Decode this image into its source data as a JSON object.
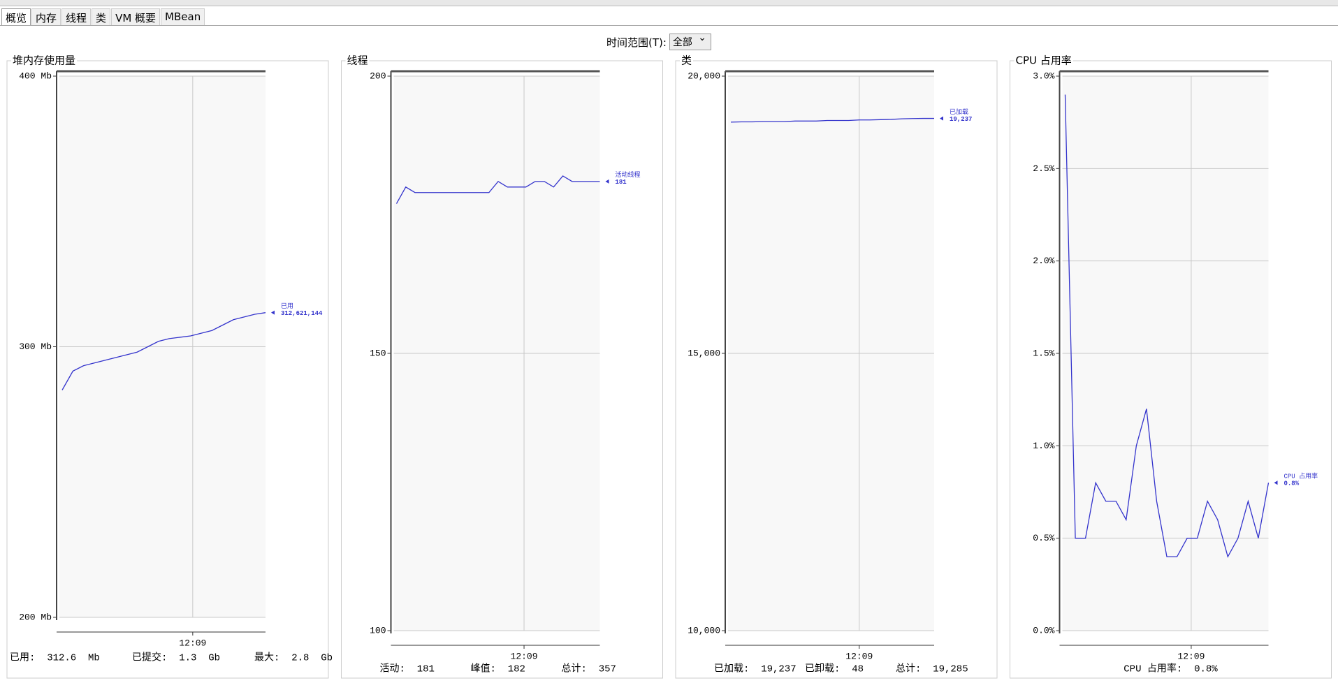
{
  "tabs": [
    "概览",
    "内存",
    "线程",
    "类",
    "VM 概要",
    "MBean"
  ],
  "time_range": {
    "label": "时间范围(T):",
    "value": "全部"
  },
  "chart_data": [
    {
      "type": "line",
      "title": "堆内存使用量",
      "values": [
        284,
        291,
        293,
        294,
        295,
        296,
        297,
        298,
        300,
        302,
        303,
        303.5,
        304,
        305,
        306,
        308,
        310,
        311,
        312,
        312.6
      ],
      "xlim": [
        0,
        19
      ],
      "xticks": [
        {
          "value": 12.2,
          "label": "12:09"
        }
      ],
      "ylim": [
        200,
        400
      ],
      "yticks": [
        {
          "value": 200,
          "label": "200 Mb"
        },
        {
          "value": 300,
          "label": "300 Mb"
        },
        {
          "value": 400,
          "label": "400 Mb"
        }
      ],
      "color": "#3333cc",
      "grid": true,
      "marker": {
        "name": "已用",
        "label": "312,621,144"
      },
      "footer": [
        "已用:  312.6  Mb",
        "已提交:  1.3  Gb",
        "最大:  2.8  Gb"
      ]
    },
    {
      "type": "line",
      "title": "线程",
      "values": [
        177,
        180,
        179,
        179,
        179,
        179,
        179,
        179,
        179,
        179,
        179,
        181,
        180,
        180,
        180,
        181,
        181,
        180,
        182,
        181,
        181,
        181,
        181
      ],
      "xlim": [
        0,
        22
      ],
      "xticks": [
        {
          "value": 13.8,
          "label": "12:09"
        }
      ],
      "ylim": [
        100,
        200
      ],
      "yticks": [
        100,
        150,
        200
      ],
      "color": "#3333cc",
      "grid": true,
      "marker": {
        "name": "活动线程",
        "label": "181"
      },
      "footer": [
        "活动:  181",
        "峰值:  182",
        "总计:  357"
      ]
    },
    {
      "type": "line",
      "title": "类",
      "values": [
        19170,
        19175,
        19175,
        19180,
        19180,
        19180,
        19190,
        19190,
        19190,
        19200,
        19200,
        19200,
        19210,
        19210,
        19215,
        19220,
        19230,
        19235,
        19237,
        19237
      ],
      "xlim": [
        0,
        19
      ],
      "xticks": [
        {
          "value": 12,
          "label": "12:09"
        }
      ],
      "ylim": [
        10000,
        20000
      ],
      "yticks": [
        {
          "value": 10000,
          "label": "10,000"
        },
        {
          "value": 15000,
          "label": "15,000"
        },
        {
          "value": 20000,
          "label": "20,000"
        }
      ],
      "color": "#3333cc",
      "grid": true,
      "marker": {
        "name": "已加载",
        "label": "19,237"
      },
      "footer": [
        "已加载:  19,237",
        "已卸载:  48",
        "总计:  19,285"
      ]
    },
    {
      "type": "line",
      "title": "CPU 占用率",
      "values": [
        2.9,
        0.5,
        0.5,
        0.8,
        0.7,
        0.7,
        0.6,
        1.0,
        1.2,
        0.7,
        0.4,
        0.4,
        0.5,
        0.5,
        0.7,
        0.6,
        0.4,
        0.5,
        0.7,
        0.5,
        0.8
      ],
      "xlim": [
        0,
        20
      ],
      "xticks": [
        {
          "value": 12.4,
          "label": "12:09"
        }
      ],
      "ylim": [
        0,
        3
      ],
      "yticks": [
        {
          "value": 0,
          "label": "0.0%"
        },
        {
          "value": 0.5,
          "label": "0.5%"
        },
        {
          "value": 1,
          "label": "1.0%"
        },
        {
          "value": 1.5,
          "label": "1.5%"
        },
        {
          "value": 2,
          "label": "2.0%"
        },
        {
          "value": 2.5,
          "label": "2.5%"
        },
        {
          "value": 3,
          "label": "3.0%"
        }
      ],
      "color": "#3333cc",
      "grid": true,
      "marker": {
        "name": "CPU 占用率",
        "label": "0.8%"
      },
      "footer": [
        "CPU 占用率:  0.8%"
      ]
    }
  ]
}
